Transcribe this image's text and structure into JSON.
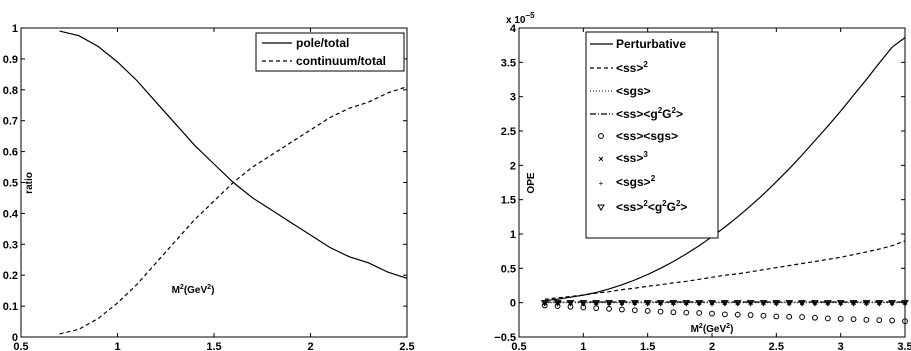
{
  "chart_data": [
    {
      "type": "line",
      "title": "",
      "xlabel": "M",
      "xlabel_sup": "2",
      "xlabel_unit": "(GeV",
      "xlabel_unit_sup": "2",
      "xlabel_close": ")",
      "ylabel": "ratio",
      "xlim": [
        0.5,
        2.5
      ],
      "ylim": [
        0,
        1
      ],
      "xticks": [
        0.5,
        1,
        1.5,
        2,
        2.5
      ],
      "xtick_labels": [
        "0.5",
        "1",
        "1.5",
        "2",
        "2.5"
      ],
      "yticks": [
        0,
        0.1,
        0.2,
        0.3,
        0.4,
        0.5,
        0.6,
        0.7,
        0.8,
        0.9,
        1
      ],
      "ytick_labels": [
        "0",
        "0.1",
        "0.2",
        "0.3",
        "0.4",
        "0.5",
        "0.6",
        "0.7",
        "0.8",
        "0.9",
        "1"
      ],
      "legend_position": "top-right",
      "x": [
        0.7,
        0.8,
        0.9,
        1.0,
        1.1,
        1.2,
        1.3,
        1.4,
        1.5,
        1.6,
        1.7,
        1.8,
        1.9,
        2.0,
        2.1,
        2.2,
        2.3,
        2.4,
        2.5
      ],
      "series": [
        {
          "name": "pole/total",
          "style": "solid",
          "values": [
            0.99,
            0.975,
            0.94,
            0.89,
            0.83,
            0.76,
            0.69,
            0.62,
            0.56,
            0.5,
            0.45,
            0.41,
            0.37,
            0.33,
            0.29,
            0.26,
            0.24,
            0.21,
            0.19
          ]
        },
        {
          "name": "continuum/total",
          "style": "dashed",
          "values": [
            0.01,
            0.025,
            0.06,
            0.11,
            0.17,
            0.24,
            0.31,
            0.38,
            0.44,
            0.5,
            0.55,
            0.59,
            0.63,
            0.67,
            0.71,
            0.74,
            0.76,
            0.79,
            0.81
          ]
        }
      ]
    },
    {
      "type": "line",
      "title": "",
      "multiplier_text": "x 10",
      "multiplier_exp": "−5",
      "xlabel": "M",
      "xlabel_sup": "2",
      "xlabel_unit": "(GeV",
      "xlabel_unit_sup": "2",
      "xlabel_close": ")",
      "ylabel": "OPE",
      "xlim": [
        0.5,
        3.5
      ],
      "ylim": [
        -0.5,
        4
      ],
      "xticks": [
        0.5,
        1,
        1.5,
        2,
        2.5,
        3,
        3.5
      ],
      "xtick_labels": [
        "0.5",
        "1",
        "1.5",
        "2",
        "2.5",
        "3",
        "3.5"
      ],
      "yticks": [
        -0.5,
        0,
        0.5,
        1,
        1.5,
        2,
        2.5,
        3,
        3.5,
        4
      ],
      "ytick_labels": [
        "−0.5",
        "0",
        "0.5",
        "1",
        "1.5",
        "2",
        "2.5",
        "3",
        "3.5",
        "4"
      ],
      "legend_position": "top-left",
      "x": [
        0.7,
        0.8,
        0.9,
        1.0,
        1.1,
        1.2,
        1.3,
        1.4,
        1.5,
        1.6,
        1.7,
        1.8,
        1.9,
        2.0,
        2.1,
        2.2,
        2.3,
        2.4,
        2.5,
        2.6,
        2.7,
        2.8,
        2.9,
        3.0,
        3.1,
        3.2,
        3.3,
        3.4,
        3.5
      ],
      "series": [
        {
          "name": "Perturbative",
          "style": "solid",
          "values": [
            0.03,
            0.05,
            0.08,
            0.11,
            0.15,
            0.2,
            0.26,
            0.33,
            0.41,
            0.5,
            0.6,
            0.71,
            0.83,
            0.96,
            1.1,
            1.25,
            1.41,
            1.58,
            1.76,
            1.95,
            2.15,
            2.36,
            2.57,
            2.79,
            3.02,
            3.25,
            3.49,
            3.72,
            3.86
          ]
        },
        {
          "name": "<ss>^2",
          "style": "dashed",
          "values": [
            0.05,
            0.07,
            0.09,
            0.11,
            0.14,
            0.16,
            0.19,
            0.21,
            0.24,
            0.26,
            0.29,
            0.31,
            0.34,
            0.37,
            0.4,
            0.42,
            0.45,
            0.48,
            0.51,
            0.54,
            0.57,
            0.6,
            0.63,
            0.66,
            0.7,
            0.74,
            0.78,
            0.83,
            0.9
          ]
        },
        {
          "name": "<sgs>",
          "style": "dotted",
          "values": [
            0.0,
            0.0,
            0.0,
            0.0,
            0.0,
            0.0,
            0.0,
            0.0,
            0.0,
            0.0,
            0.0,
            0.0,
            0.0,
            0.0,
            0.0,
            0.0,
            0.0,
            0.0,
            0.0,
            0.0,
            0.0,
            0.0,
            0.0,
            0.0,
            0.0,
            0.0,
            0.0,
            0.0,
            0.0
          ]
        },
        {
          "name": "<ss><g^2G^2>",
          "style": "dashdot",
          "values": [
            0.01,
            0.01,
            0.01,
            0.01,
            0.01,
            0.01,
            0.01,
            0.01,
            0.01,
            0.01,
            0.01,
            0.01,
            0.01,
            0.01,
            0.01,
            0.01,
            0.01,
            0.01,
            0.01,
            0.01,
            0.01,
            0.01,
            0.01,
            0.01,
            0.01,
            0.01,
            0.01,
            0.01,
            0.01
          ]
        },
        {
          "name": "<ss><sgs>",
          "style": "circle",
          "values": [
            -0.04,
            -0.05,
            -0.06,
            -0.07,
            -0.08,
            -0.09,
            -0.1,
            -0.11,
            -0.12,
            -0.13,
            -0.14,
            -0.145,
            -0.15,
            -0.16,
            -0.17,
            -0.175,
            -0.18,
            -0.19,
            -0.2,
            -0.205,
            -0.21,
            -0.22,
            -0.23,
            -0.235,
            -0.24,
            -0.25,
            -0.255,
            -0.26,
            -0.27
          ]
        },
        {
          "name": "<ss>^3",
          "style": "cross",
          "values": [
            0.0,
            0.0,
            0.0,
            0.0,
            0.0,
            0.0,
            0.0,
            0.0,
            0.0,
            0.0,
            0.0,
            0.0,
            0.0,
            0.0,
            0.0,
            0.0,
            0.0,
            0.0,
            0.0,
            0.0,
            0.0,
            0.0,
            0.0,
            0.0,
            0.0,
            0.0,
            0.0,
            0.0,
            0.0
          ]
        },
        {
          "name": "<sgs>^2",
          "style": "plus",
          "values": [
            0.0,
            0.0,
            0.0,
            0.0,
            0.0,
            0.0,
            0.0,
            0.0,
            0.0,
            0.0,
            0.0,
            0.0,
            0.0,
            0.0,
            0.0,
            0.0,
            0.0,
            0.0,
            0.0,
            0.0,
            0.0,
            0.0,
            0.0,
            0.0,
            0.0,
            0.0,
            0.0,
            0.0,
            0.0
          ]
        },
        {
          "name": "<ss>^2<g^2G^2>",
          "style": "triangle",
          "values": [
            0.0,
            0.0,
            0.0,
            0.0,
            0.0,
            0.0,
            0.0,
            0.0,
            0.0,
            0.0,
            0.0,
            0.0,
            0.0,
            0.0,
            0.0,
            0.0,
            0.0,
            0.0,
            0.0,
            0.0,
            0.0,
            0.0,
            0.0,
            0.0,
            0.0,
            0.0,
            0.0,
            0.0,
            0.0
          ]
        }
      ]
    }
  ]
}
